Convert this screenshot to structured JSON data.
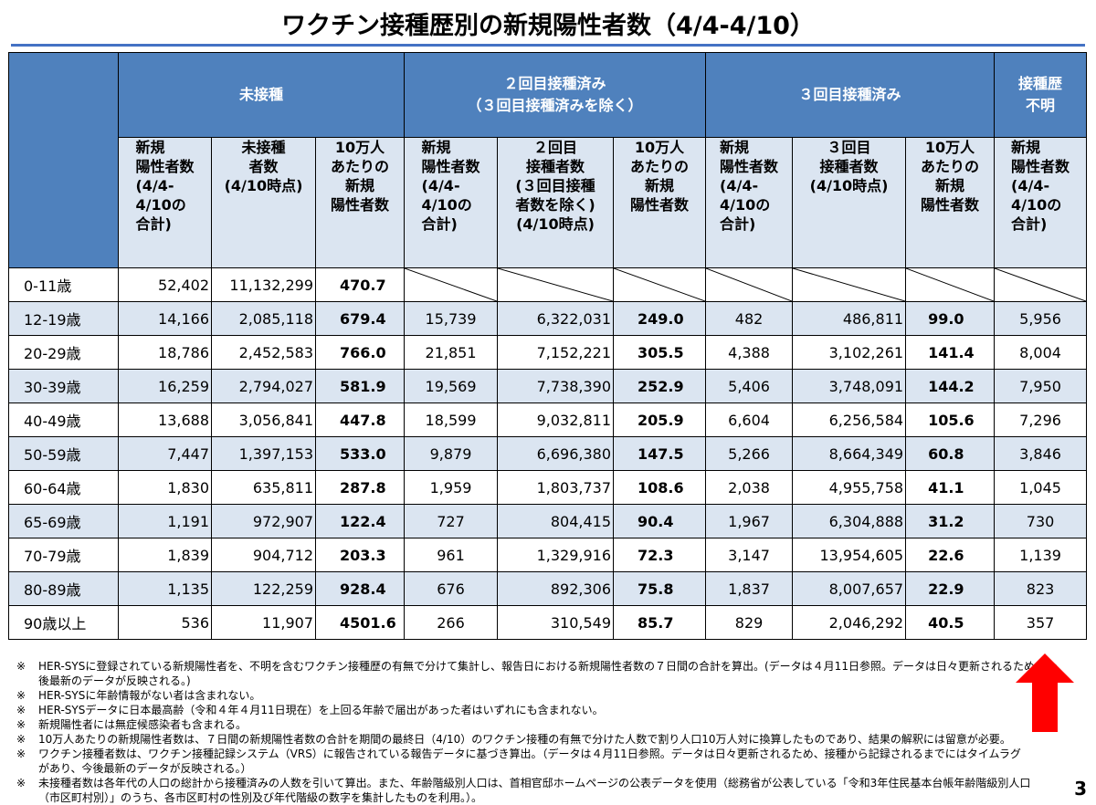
{
  "title": "ワクチン接種歴別の新規陽性者数（4/4-4/10）",
  "groups": {
    "unvaccinated": "未接種",
    "dose2": "２回目接種済み\n（３回目接種済みを除く）",
    "dose3": "３回目接種済み",
    "unknown": "接種歴\n不明"
  },
  "sub_headers": {
    "u_new": "新規\n陽性者数\n(4/4-\n4/10の\n合計)",
    "u_pop": "未接種\n者数\n(4/10時点)",
    "u_rate": "10万人\nあたりの\n新規\n陽性者数",
    "d2_new": "新規\n陽性者数\n(4/4-\n4/10の\n合計)",
    "d2_pop": "２回目\n接種者数\n(３回目接種\n者数を除く)\n(4/10時点)",
    "d2_rate": "10万人\nあたりの\n新規\n陽性者数",
    "d3_new": "新規\n陽性者数\n(4/4-\n4/10の\n合計)",
    "d3_pop": "３回目\n接種者数\n(4/10時点)",
    "d3_rate": "10万人\nあたりの\n新規\n陽性者数",
    "k_new": "新規\n陽性者数\n(4/4-\n4/10の\n合計)"
  },
  "rows": [
    {
      "age": "0-11歳",
      "u_new": "52,402",
      "u_pop": "11,132,299",
      "u_rate": "470.7",
      "d2_new": "",
      "d2_pop": "",
      "d2_rate": "",
      "d3_new": "",
      "d3_pop": "",
      "d3_rate": "",
      "k_new": ""
    },
    {
      "age": "12-19歳",
      "u_new": "14,166",
      "u_pop": "2,085,118",
      "u_rate": "679.4",
      "d2_new": "15,739",
      "d2_pop": "6,322,031",
      "d2_rate": "249.0",
      "d3_new": "482",
      "d3_pop": "486,811",
      "d3_rate": "99.0",
      "k_new": "5,956"
    },
    {
      "age": "20-29歳",
      "u_new": "18,786",
      "u_pop": "2,452,583",
      "u_rate": "766.0",
      "d2_new": "21,851",
      "d2_pop": "7,152,221",
      "d2_rate": "305.5",
      "d3_new": "4,388",
      "d3_pop": "3,102,261",
      "d3_rate": "141.4",
      "k_new": "8,004"
    },
    {
      "age": "30-39歳",
      "u_new": "16,259",
      "u_pop": "2,794,027",
      "u_rate": "581.9",
      "d2_new": "19,569",
      "d2_pop": "7,738,390",
      "d2_rate": "252.9",
      "d3_new": "5,406",
      "d3_pop": "3,748,091",
      "d3_rate": "144.2",
      "k_new": "7,950"
    },
    {
      "age": "40-49歳",
      "u_new": "13,688",
      "u_pop": "3,056,841",
      "u_rate": "447.8",
      "d2_new": "18,599",
      "d2_pop": "9,032,811",
      "d2_rate": "205.9",
      "d3_new": "6,604",
      "d3_pop": "6,256,584",
      "d3_rate": "105.6",
      "k_new": "7,296"
    },
    {
      "age": "50-59歳",
      "u_new": "7,447",
      "u_pop": "1,397,153",
      "u_rate": "533.0",
      "d2_new": "9,879",
      "d2_pop": "6,696,380",
      "d2_rate": "147.5",
      "d3_new": "5,266",
      "d3_pop": "8,664,349",
      "d3_rate": "60.8",
      "k_new": "3,846"
    },
    {
      "age": "60-64歳",
      "u_new": "1,830",
      "u_pop": "635,811",
      "u_rate": "287.8",
      "d2_new": "1,959",
      "d2_pop": "1,803,737",
      "d2_rate": "108.6",
      "d3_new": "2,038",
      "d3_pop": "4,955,758",
      "d3_rate": "41.1",
      "k_new": "1,045"
    },
    {
      "age": "65-69歳",
      "u_new": "1,191",
      "u_pop": "972,907",
      "u_rate": "122.4",
      "d2_new": "727",
      "d2_pop": "804,415",
      "d2_rate": "90.4",
      "d3_new": "1,967",
      "d3_pop": "6,304,888",
      "d3_rate": "31.2",
      "k_new": "730"
    },
    {
      "age": "70-79歳",
      "u_new": "1,839",
      "u_pop": "904,712",
      "u_rate": "203.3",
      "d2_new": "961",
      "d2_pop": "1,329,916",
      "d2_rate": "72.3",
      "d3_new": "3,147",
      "d3_pop": "13,954,605",
      "d3_rate": "22.6",
      "k_new": "1,139"
    },
    {
      "age": "80-89歳",
      "u_new": "1,135",
      "u_pop": "122,259",
      "u_rate": "928.4",
      "d2_new": "676",
      "d2_pop": "892,306",
      "d2_rate": "75.8",
      "d3_new": "1,837",
      "d3_pop": "8,007,657",
      "d3_rate": "22.9",
      "k_new": "823"
    },
    {
      "age": "90歳以上",
      "u_new": "536",
      "u_pop": "11,907",
      "u_rate": "4501.6",
      "d2_new": "266",
      "d2_pop": "310,549",
      "d2_rate": "85.7",
      "d3_new": "829",
      "d3_pop": "2,046,292",
      "d3_rate": "40.5",
      "k_new": "357"
    }
  ],
  "note_mark": "※",
  "notes": [
    "HER-SYSに登録されている新規陽性者を、不明を含むワクチン接種歴の有無で分けて集計し、報告日における新規陽性者数の７日間の合計を算出。(データは４月11日参照。データは日々更新されるため、今\n後最新のデータが反映される。)",
    "HER-SYSに年齢情報がない者は含まれない。",
    "HER-SYSデータに日本最高齢（令和４年４月11日現在）を上回る年齢で届出があった者はいずれにも含まれない。",
    "新規陽性者には無症候感染者も含まれる。",
    "10万人あたりの新規陽性者数は、７日間の新規陽性者数の合計を期間の最終日（4/10）のワクチン接種の有無で分けた人数で割り人口10万人対に換算したものであり、結果の解釈には留意が必要。",
    "ワクチン接種者数は、ワクチン接種記録システム（VRS）に報告されている報告データに基づき算出。（データは４月11日参照。データは日々更新されるため、接種から記録されるまでにはタイムラグ\nがあり、今後最新のデータが反映される。）",
    "未接種者数は各年代の人口の総計から接種済みの人数を引いて算出。また、年齢階級別人口は、首相官邸ホームページの公表データを使用（総務省が公表している「令和3年住民基本台帳年齢階級別人口\n（市区町村別）」のうち、各市区町村の性別及び年代階級の数字を集計したものを利用。）。"
  ],
  "page_number": "3",
  "colors": {
    "header_blue": "#4f81bd",
    "header_light": "#dbe5f1",
    "arrow_red": "#ff0000"
  }
}
